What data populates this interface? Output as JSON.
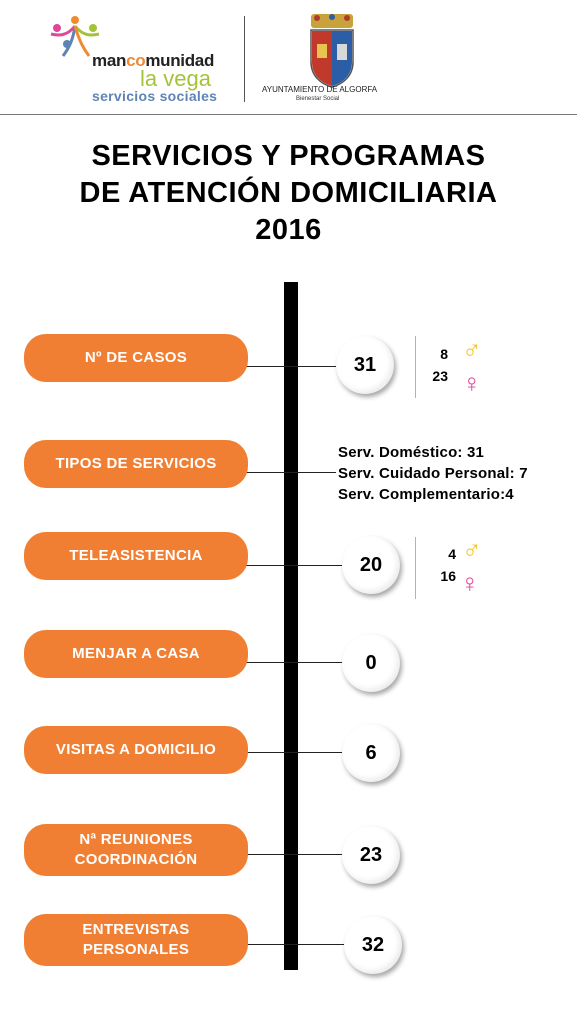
{
  "header": {
    "brand_prefix_a": "man",
    "brand_prefix_b": "co",
    "brand_prefix_c": "munidad",
    "brand_line2": "la vega",
    "brand_line3": "servicios sociales",
    "org_name": "AYUNTAMIENTO DE ALGORFA",
    "org_dept": "Bienestar Social"
  },
  "title": {
    "line1": "SERVICIOS Y PROGRAMAS",
    "line2": "DE ATENCIÓN DOMICILIARIA",
    "line3": "2016"
  },
  "items": [
    {
      "label": "Nº DE CASOS",
      "value": "31",
      "male": "8",
      "female": "23"
    },
    {
      "label": "TIPOS DE SERVICIOS",
      "services": [
        "Serv. Doméstico: 31",
        "Serv. Cuidado Personal: 7",
        "Serv. Complementario:4"
      ]
    },
    {
      "label": "TELEASISTENCIA",
      "value": "20",
      "male": "4",
      "female": "16"
    },
    {
      "label": "MENJAR A CASA",
      "value": "0"
    },
    {
      "label": "VISITAS A DOMICILIO",
      "value": "6"
    },
    {
      "label_line1": "Nª REUNIONES",
      "label_line2": "COORDINACIÓN",
      "value": "23"
    },
    {
      "label_line1": "ENTREVISTAS",
      "label_line2": "PERSONALES",
      "value": "32"
    }
  ],
  "symbols": {
    "male": "♂",
    "female": "♀"
  },
  "colors": {
    "orange": "#f07f33",
    "male": "#f5c518",
    "female": "#e0479a",
    "brand_green": "#a4c338",
    "brand_blue": "#5e84b5"
  }
}
